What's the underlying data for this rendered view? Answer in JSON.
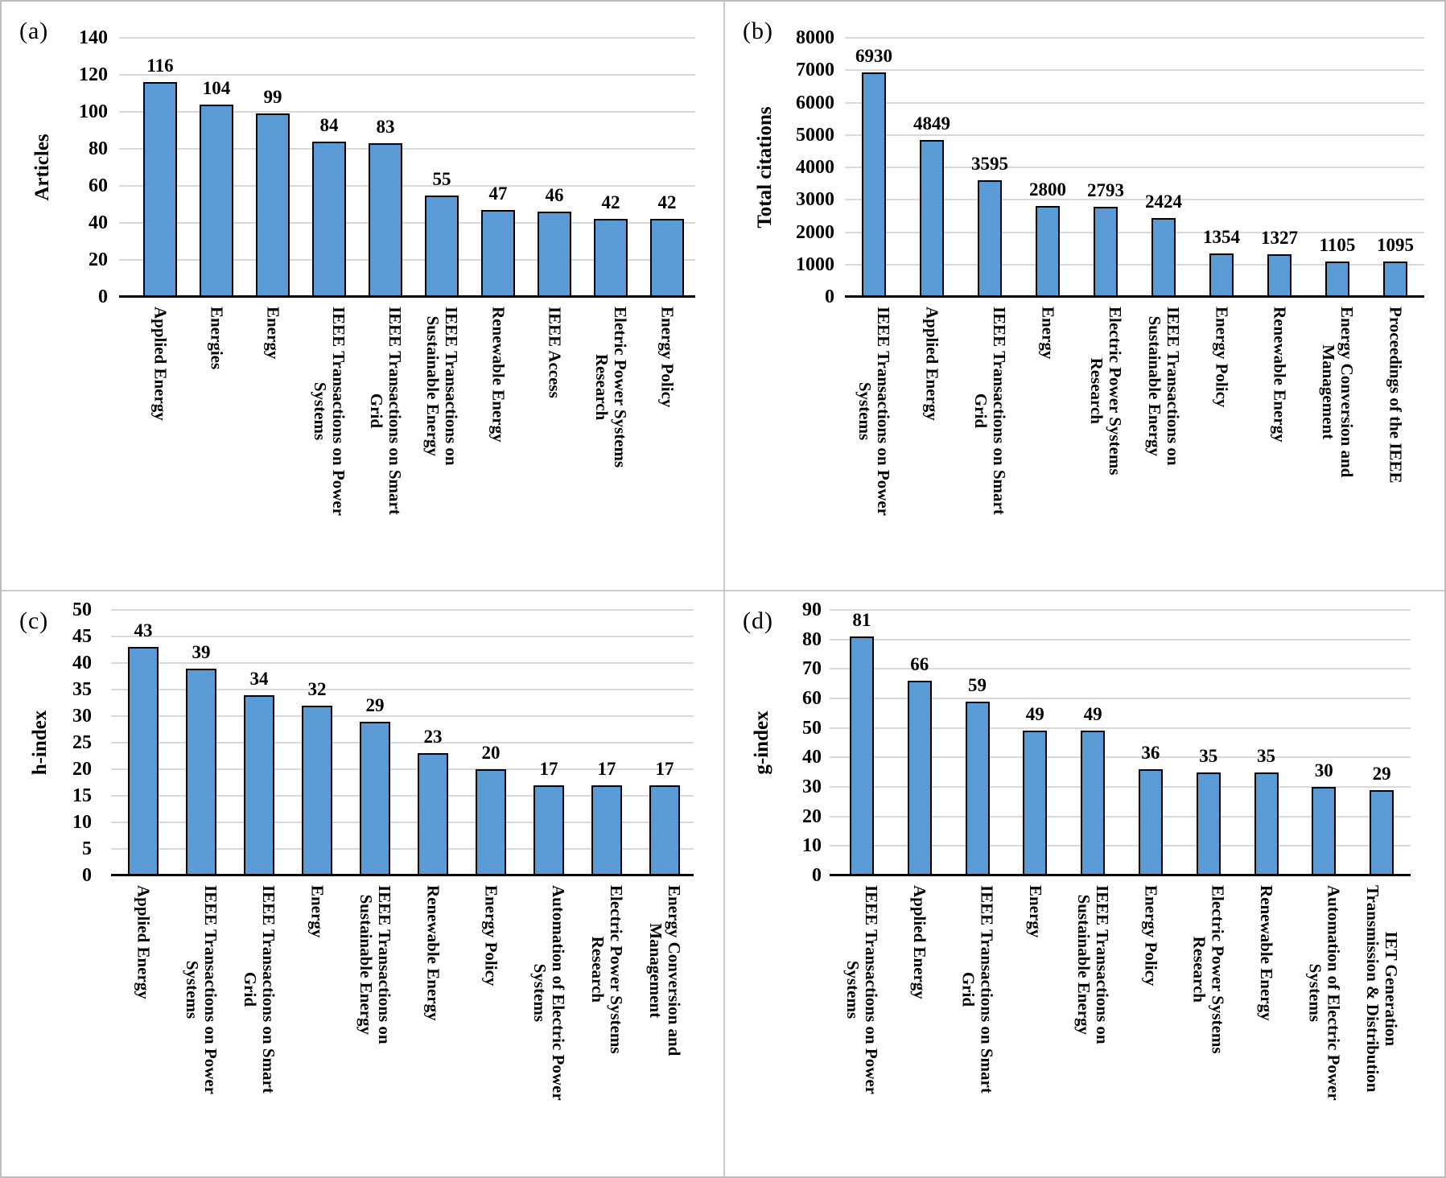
{
  "colors": {
    "bar_fill": "#5B9BD5",
    "bar_border": "#000000",
    "gridline": "#D9D9D9",
    "axis_line": "#000000",
    "panel_divider": "#CACACA",
    "figure_border": "#BDBDBD"
  },
  "chart_data": [
    {
      "panel": "a",
      "panel_label": "(a)",
      "type": "bar",
      "title": "",
      "xlabel": "",
      "ylabel": "Articles",
      "ylim": [
        0,
        140
      ],
      "ystep": 20,
      "yticks": [
        0,
        20,
        40,
        60,
        80,
        100,
        120,
        140
      ],
      "grid": true,
      "legend": "none",
      "categories": [
        "Applied Energy",
        "Energies",
        "Energy",
        "IEEE Transactions on Power\nSystems",
        "IEEE Transactions on Smart\nGrid",
        "IEEE Transactions on\nSustainable Energy",
        "Renewable Energy",
        "IEEE Access",
        "Eletric Power Systems\nResearch",
        "Energy Policy"
      ],
      "values": [
        116,
        104,
        99,
        84,
        83,
        55,
        47,
        46,
        42,
        42
      ]
    },
    {
      "panel": "b",
      "panel_label": "(b)",
      "type": "bar",
      "title": "",
      "xlabel": "",
      "ylabel": "Total citations",
      "ylim": [
        0,
        8000
      ],
      "ystep": 1000,
      "yticks": [
        0,
        1000,
        2000,
        3000,
        4000,
        5000,
        6000,
        7000,
        8000
      ],
      "grid": true,
      "legend": "none",
      "categories": [
        "IEEE Transactions on Power\nSystems",
        "Applied Energy",
        "IEEE Transactions on Smart\nGrid",
        "Energy",
        "Electric Power Systems\nResearch",
        "IEEE Transactions on\nSustainable Energy",
        "Energy Policy",
        "Renewable Energy",
        "Energy Conversion and\nManagement",
        "Proceedings of the IEEE"
      ],
      "values": [
        6930,
        4849,
        3595,
        2800,
        2793,
        2424,
        1354,
        1327,
        1105,
        1095
      ]
    },
    {
      "panel": "c",
      "panel_label": "(c)",
      "type": "bar",
      "title": "",
      "xlabel": "",
      "ylabel": "h-index",
      "ylim": [
        0,
        50
      ],
      "ystep": 5,
      "yticks": [
        0,
        5,
        10,
        15,
        20,
        25,
        30,
        35,
        40,
        45,
        50
      ],
      "grid": true,
      "legend": "none",
      "categories": [
        "Applied Energy",
        "IEEE Transactions on Power\nSystems",
        "IEEE Transactions on Smart\nGrid",
        "Energy",
        "IEEE Transactions on\nSustainable Energy",
        "Renewable Energy",
        "Energy Policy",
        "Automation of Electric Power\nSystems",
        "Electric Power Systems\nResearch",
        "Energy Conversion and\nManagement"
      ],
      "values": [
        43,
        39,
        34,
        32,
        29,
        23,
        20,
        17,
        17,
        17
      ]
    },
    {
      "panel": "d",
      "panel_label": "(d)",
      "type": "bar",
      "title": "",
      "xlabel": "",
      "ylabel": "g-index",
      "ylim": [
        0,
        90
      ],
      "ystep": 10,
      "yticks": [
        0,
        10,
        20,
        30,
        40,
        50,
        60,
        70,
        80,
        90
      ],
      "grid": true,
      "legend": "none",
      "categories": [
        "IEEE Transactions on Power\nSystems",
        "Applied Energy",
        "IEEE Transactions on Smart\nGrid",
        "Energy",
        "IEEE Transactions on\nSustainable Energy",
        "Energy Policy",
        "Electric Power Systems\nResearch",
        "Renewable Energy",
        "Automation of Electric Power\nSystems",
        "IET Generation\nTransmission & Distribution"
      ],
      "values": [
        81,
        66,
        59,
        49,
        49,
        36,
        35,
        35,
        30,
        29
      ]
    }
  ]
}
